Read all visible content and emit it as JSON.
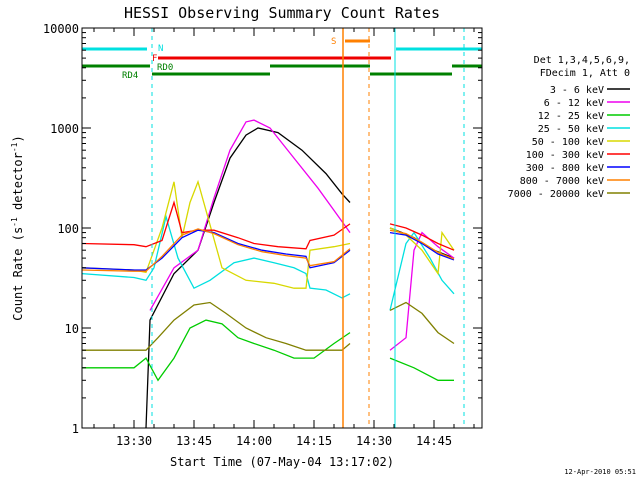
{
  "chart_data": {
    "type": "line",
    "title": "HESSI Observing Summary Count Rates",
    "xlabel": "Start Time (07-May-04 13:17:02)",
    "ylabel": "Count Rate (s⁻¹ detector⁻¹)",
    "ylabel_main": "Count Rate (s",
    "ylabel_sup1": "-1",
    "ylabel_mid": " detector",
    "ylabel_sup2": "-1",
    "ylabel_end": ")",
    "y_scale": "log",
    "xlim": [
      "13:17:02",
      "14:57:00"
    ],
    "ylim": [
      1,
      10000
    ],
    "x_ticks": [
      "13:30",
      "13:45",
      "14:00",
      "14:15",
      "14:30",
      "14:45"
    ],
    "y_ticks": [
      "1",
      "10",
      "100",
      "1000",
      "10000"
    ],
    "legend_header": [
      "Det 1,3,4,5,6,9,",
      "FDecim 1, Att 0"
    ],
    "legend_placement": "right",
    "timestamp": "12-Apr-2010 05:51",
    "flag_labels": {
      "N": "N",
      "F": "F",
      "RD0": "RD0",
      "RD4": "RD4",
      "S": "S"
    },
    "series": [
      {
        "name": "3 - 6 keV",
        "color": "#000000",
        "points": [
          [
            "13:17",
            null
          ],
          [
            "13:28",
            null
          ],
          [
            "13:33",
            1
          ],
          [
            "13:34",
            12
          ],
          [
            "13:40",
            35
          ],
          [
            "13:46",
            60
          ],
          [
            "13:50",
            180
          ],
          [
            "13:54",
            500
          ],
          [
            "13:58",
            850
          ],
          [
            "14:01",
            1000
          ],
          [
            "14:06",
            900
          ],
          [
            "14:12",
            600
          ],
          [
            "14:18",
            350
          ],
          [
            "14:22",
            220
          ],
          [
            "14:24",
            180
          ],
          [
            "14:24.5",
            null
          ],
          [
            "14:33",
            null
          ],
          [
            "14:34",
            100
          ],
          [
            "14:37",
            90
          ],
          [
            "14:40",
            80
          ],
          [
            "14:45",
            60
          ],
          [
            "14:50",
            50
          ]
        ]
      },
      {
        "name": "6 - 12 keV",
        "color": "#ee00ee",
        "points": [
          [
            "13:17",
            null
          ],
          [
            "13:33",
            null
          ],
          [
            "13:34",
            15
          ],
          [
            "13:40",
            40
          ],
          [
            "13:46",
            60
          ],
          [
            "13:50",
            200
          ],
          [
            "13:54",
            600
          ],
          [
            "13:58",
            1150
          ],
          [
            "14:00",
            1200
          ],
          [
            "14:04",
            1000
          ],
          [
            "14:10",
            500
          ],
          [
            "14:16",
            250
          ],
          [
            "14:20",
            150
          ],
          [
            "14:24",
            90
          ],
          [
            "14:24.5",
            null
          ],
          [
            "14:33",
            null
          ],
          [
            "14:34",
            6
          ],
          [
            "14:38",
            8
          ],
          [
            "14:40",
            60
          ],
          [
            "14:42",
            90
          ],
          [
            "14:46",
            65
          ],
          [
            "14:50",
            50
          ]
        ]
      },
      {
        "name": "12 - 25 keV",
        "color": "#00cc00",
        "points": [
          [
            "13:17",
            4
          ],
          [
            "13:30",
            4
          ],
          [
            "13:33",
            5
          ],
          [
            "13:36",
            3
          ],
          [
            "13:40",
            5
          ],
          [
            "13:44",
            10
          ],
          [
            "13:48",
            12
          ],
          [
            "13:52",
            11
          ],
          [
            "13:56",
            8
          ],
          [
            "14:00",
            7
          ],
          [
            "14:05",
            6
          ],
          [
            "14:10",
            5
          ],
          [
            "14:15",
            5
          ],
          [
            "14:20",
            7
          ],
          [
            "14:24",
            9
          ],
          [
            "14:24.5",
            null
          ],
          [
            "14:33",
            null
          ],
          [
            "14:34",
            5
          ],
          [
            "14:40",
            4
          ],
          [
            "14:46",
            3
          ],
          [
            "14:50",
            3
          ]
        ]
      },
      {
        "name": "25 - 50 keV",
        "color": "#00e0e0",
        "points": [
          [
            "13:17",
            35
          ],
          [
            "13:30",
            32
          ],
          [
            "13:33",
            30
          ],
          [
            "13:35",
            40
          ],
          [
            "13:38",
            130
          ],
          [
            "13:41",
            50
          ],
          [
            "13:45",
            25
          ],
          [
            "13:49",
            30
          ],
          [
            "13:55",
            45
          ],
          [
            "14:00",
            50
          ],
          [
            "14:05",
            45
          ],
          [
            "14:10",
            40
          ],
          [
            "14:13",
            35
          ],
          [
            "14:14",
            25
          ],
          [
            "14:18",
            24
          ],
          [
            "14:22",
            20
          ],
          [
            "14:24",
            22
          ],
          [
            "14:24.5",
            null
          ],
          [
            "14:33",
            null
          ],
          [
            "14:34",
            15
          ],
          [
            "14:38",
            70
          ],
          [
            "14:40",
            90
          ],
          [
            "14:44",
            50
          ],
          [
            "14:47",
            30
          ],
          [
            "14:50",
            22
          ]
        ]
      },
      {
        "name": "50 - 100 keV",
        "color": "#d8d800",
        "points": [
          [
            "13:17",
            40
          ],
          [
            "13:30",
            38
          ],
          [
            "13:33",
            36
          ],
          [
            "13:37",
            100
          ],
          [
            "13:40",
            290
          ],
          [
            "13:42",
            80
          ],
          [
            "13:44",
            180
          ],
          [
            "13:46",
            290
          ],
          [
            "13:48",
            150
          ],
          [
            "13:52",
            40
          ],
          [
            "13:58",
            30
          ],
          [
            "14:05",
            28
          ],
          [
            "14:10",
            25
          ],
          [
            "14:13",
            25
          ],
          [
            "14:14",
            60
          ],
          [
            "14:20",
            65
          ],
          [
            "14:24",
            70
          ],
          [
            "14:24.5",
            null
          ],
          [
            "14:33",
            null
          ],
          [
            "14:34",
            100
          ],
          [
            "14:38",
            85
          ],
          [
            "14:42",
            60
          ],
          [
            "14:46",
            35
          ],
          [
            "14:47",
            90
          ],
          [
            "14:50",
            60
          ]
        ]
      },
      {
        "name": "100 - 300 keV",
        "color": "#ff0000",
        "points": [
          [
            "13:17",
            70
          ],
          [
            "13:30",
            68
          ],
          [
            "13:33",
            65
          ],
          [
            "13:37",
            75
          ],
          [
            "13:40",
            180
          ],
          [
            "13:42",
            90
          ],
          [
            "13:46",
            95
          ],
          [
            "13:50",
            95
          ],
          [
            "13:56",
            80
          ],
          [
            "14:00",
            70
          ],
          [
            "14:06",
            65
          ],
          [
            "14:13",
            62
          ],
          [
            "14:14",
            75
          ],
          [
            "14:20",
            85
          ],
          [
            "14:24",
            110
          ],
          [
            "14:24.5",
            null
          ],
          [
            "14:33",
            null
          ],
          [
            "14:34",
            110
          ],
          [
            "14:38",
            100
          ],
          [
            "14:42",
            85
          ],
          [
            "14:46",
            70
          ],
          [
            "14:50",
            60
          ]
        ]
      },
      {
        "name": "300 - 800 keV",
        "color": "#0000ff",
        "points": [
          [
            "13:17",
            40
          ],
          [
            "13:30",
            38
          ],
          [
            "13:33",
            38
          ],
          [
            "13:37",
            50
          ],
          [
            "13:42",
            80
          ],
          [
            "13:46",
            95
          ],
          [
            "13:50",
            90
          ],
          [
            "13:56",
            70
          ],
          [
            "14:02",
            60
          ],
          [
            "14:08",
            55
          ],
          [
            "14:13",
            52
          ],
          [
            "14:14",
            40
          ],
          [
            "14:20",
            45
          ],
          [
            "14:24",
            60
          ],
          [
            "14:24.5",
            null
          ],
          [
            "14:33",
            null
          ],
          [
            "14:34",
            90
          ],
          [
            "14:38",
            85
          ],
          [
            "14:42",
            70
          ],
          [
            "14:46",
            55
          ],
          [
            "14:50",
            48
          ]
        ]
      },
      {
        "name": "800 - 7000 keV",
        "color": "#ff8000",
        "points": [
          [
            "13:17",
            38
          ],
          [
            "13:30",
            37
          ],
          [
            "13:33",
            37
          ],
          [
            "13:37",
            52
          ],
          [
            "13:42",
            85
          ],
          [
            "13:46",
            98
          ],
          [
            "13:50",
            88
          ],
          [
            "13:56",
            68
          ],
          [
            "14:02",
            58
          ],
          [
            "14:08",
            53
          ],
          [
            "14:13",
            50
          ],
          [
            "14:14",
            42
          ],
          [
            "14:20",
            46
          ],
          [
            "14:24",
            62
          ],
          [
            "14:24.5",
            null
          ],
          [
            "14:33",
            null
          ],
          [
            "14:34",
            95
          ],
          [
            "14:38",
            88
          ],
          [
            "14:42",
            72
          ],
          [
            "14:46",
            57
          ],
          [
            "14:50",
            49
          ]
        ]
      },
      {
        "name": "7000 - 20000 keV",
        "color": "#808000",
        "points": [
          [
            "13:17",
            6
          ],
          [
            "13:30",
            6
          ],
          [
            "13:33",
            6
          ],
          [
            "13:36",
            8
          ],
          [
            "13:40",
            12
          ],
          [
            "13:45",
            17
          ],
          [
            "13:49",
            18
          ],
          [
            "13:53",
            14
          ],
          [
            "13:58",
            10
          ],
          [
            "14:03",
            8
          ],
          [
            "14:08",
            7
          ],
          [
            "14:13",
            6
          ],
          [
            "14:17",
            6
          ],
          [
            "14:22",
            6
          ],
          [
            "14:24",
            7
          ],
          [
            "14:24.5",
            null
          ],
          [
            "14:33",
            null
          ],
          [
            "14:34",
            15
          ],
          [
            "14:38",
            18
          ],
          [
            "14:42",
            14
          ],
          [
            "14:46",
            9
          ],
          [
            "14:50",
            7
          ]
        ]
      }
    ]
  }
}
